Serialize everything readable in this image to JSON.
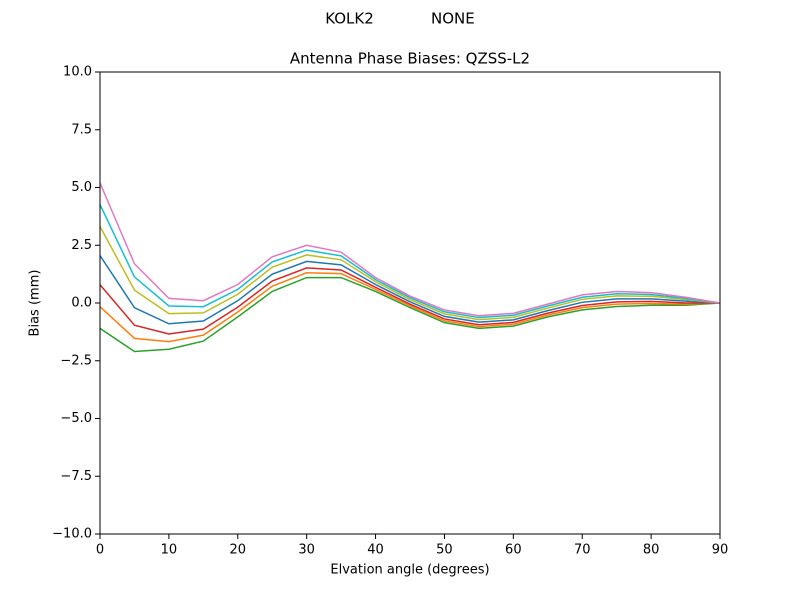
{
  "chart_data": {
    "type": "line",
    "suptitle": "KOLK2            NONE",
    "title": "Antenna Phase Biases: QZSS-L2",
    "x_label": "Elvation angle (degrees)",
    "y_label": "Bias (mm)",
    "x": [
      0,
      5,
      10,
      15,
      20,
      25,
      30,
      35,
      40,
      45,
      50,
      55,
      60,
      65,
      70,
      75,
      80,
      85,
      90
    ],
    "series": [
      {
        "color": "#2ca02c",
        "values": [
          -1.1,
          -2.1,
          -2.0,
          -1.65,
          -0.6,
          0.5,
          1.1,
          1.1,
          0.5,
          -0.2,
          -0.85,
          -1.1,
          -1.0,
          -0.6,
          -0.3,
          -0.15,
          -0.1,
          -0.1,
          0
        ]
      },
      {
        "color": "#ff7f0e",
        "values": [
          -0.16,
          -1.53,
          -1.67,
          -1.39,
          -0.39,
          0.73,
          1.31,
          1.27,
          0.59,
          -0.12,
          -0.77,
          -1.02,
          -0.92,
          -0.52,
          -0.2,
          -0.05,
          -0.02,
          -0.05,
          0
        ]
      },
      {
        "color": "#d62728",
        "values": [
          0.79,
          -0.96,
          -1.34,
          -1.13,
          -0.18,
          0.95,
          1.52,
          1.43,
          0.68,
          -0.05,
          -0.69,
          -0.94,
          -0.84,
          -0.44,
          -0.11,
          0.05,
          0.07,
          0.0,
          0
        ]
      },
      {
        "color": "#1f77b4",
        "values": [
          2.05,
          -0.2,
          -0.9,
          -0.78,
          0.1,
          1.25,
          1.8,
          1.65,
          0.8,
          0.05,
          -0.58,
          -0.83,
          -0.73,
          -0.33,
          0.03,
          0.18,
          0.18,
          0.08,
          0
        ]
      },
      {
        "color": "#bcbd22",
        "values": [
          3.31,
          0.56,
          -0.46,
          -0.43,
          0.38,
          1.55,
          2.08,
          1.87,
          0.92,
          0.15,
          -0.47,
          -0.72,
          -0.62,
          -0.22,
          0.16,
          0.31,
          0.29,
          0.15,
          0
        ]
      },
      {
        "color": "#17becf",
        "values": [
          4.26,
          1.13,
          -0.13,
          -0.16,
          0.59,
          1.78,
          2.29,
          2.04,
          1.01,
          0.23,
          -0.38,
          -0.63,
          -0.53,
          -0.13,
          0.25,
          0.4,
          0.37,
          0.2,
          0
        ]
      },
      {
        "color": "#e377c2",
        "values": [
          5.2,
          1.7,
          0.2,
          0.1,
          0.8,
          2.0,
          2.5,
          2.2,
          1.1,
          0.3,
          -0.3,
          -0.55,
          -0.45,
          -0.05,
          0.35,
          0.5,
          0.45,
          0.25,
          0
        ]
      }
    ],
    "xlim": [
      0,
      90
    ],
    "xticks": [
      0,
      10,
      20,
      30,
      40,
      50,
      60,
      70,
      80,
      90
    ],
    "ylim": [
      -10,
      10
    ],
    "yticks": [
      {
        "value": -10,
        "label": "−10.0"
      },
      {
        "value": -7.5,
        "label": "−7.5"
      },
      {
        "value": -5,
        "label": "−5.0"
      },
      {
        "value": -2.5,
        "label": "−2.5"
      },
      {
        "value": 0,
        "label": "0.0"
      },
      {
        "value": 2.5,
        "label": "2.5"
      },
      {
        "value": 5,
        "label": "5.0"
      },
      {
        "value": 7.5,
        "label": "7.5"
      },
      {
        "value": 10,
        "label": "10.0"
      }
    ],
    "grid": false
  }
}
